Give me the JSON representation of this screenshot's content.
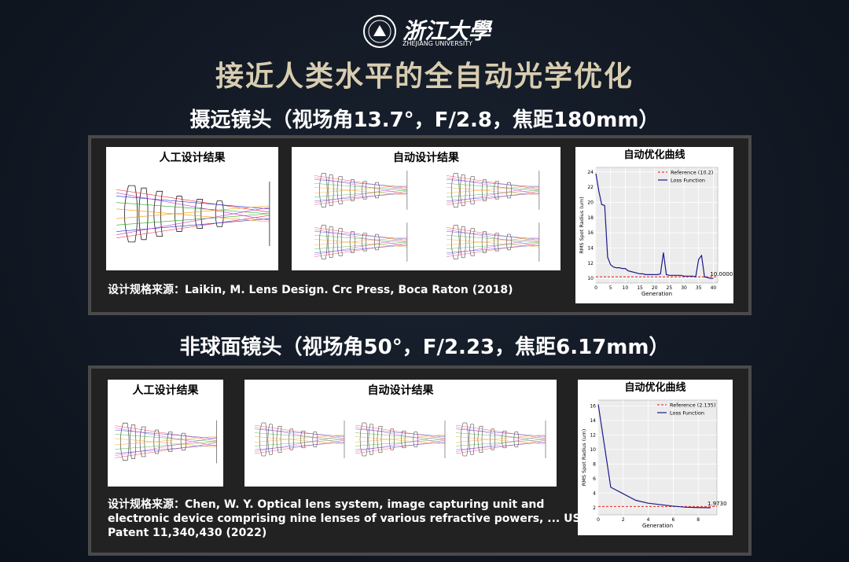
{
  "header": {
    "logo_text": "浙江大學",
    "logo_sub": "ZHEJIANG UNIVERSITY",
    "title": "接近人类水平的全自动光学优化"
  },
  "sections": [
    {
      "heading": "摄远镜头（视场角13.7°，F/2.8，焦距180mm）",
      "manual_label": "人工设计结果",
      "auto_label": "自动设计结果",
      "source": [
        "设计规格来源：Laikin, M. Lens Design. Crc Press, Boca Raton (2018)"
      ]
    },
    {
      "heading": "非球面镜头（视场角50°，F/2.23，焦距6.17mm）",
      "manual_label": "人工设计结果",
      "auto_label": "自动设计结果",
      "source": [
        "设计规格来源：Chen, W. Y. Optical lens system, image capturing unit and",
        "electronic device comprising nine lenses of various refractive powers, ... US",
        "Patent 11,340,430 (2022)"
      ]
    }
  ],
  "chart_data": [
    {
      "type": "line",
      "title": "自动优化曲线",
      "x_label": "Generation",
      "y_label": "RMS Spot Radius (um)",
      "xlim": [
        0,
        41.5
      ],
      "xticks": [
        0,
        5,
        10,
        15,
        20,
        25,
        30,
        35,
        40
      ],
      "ylim": [
        9.4,
        24.6
      ],
      "yticks": [
        10,
        12,
        14,
        16,
        18,
        20,
        22,
        24
      ],
      "grid": true,
      "legend": "upper right",
      "annotation": "10.0000",
      "series": [
        {
          "name": "Reference (10.2)",
          "color": "#e8403c",
          "style": "dashed",
          "x": [
            0,
            41.5
          ],
          "values": [
            10.2,
            10.2
          ]
        },
        {
          "name": "Loss Function",
          "color": "#1a1a8c",
          "style": "solid",
          "x": [
            0,
            1,
            2,
            3,
            4,
            5,
            6,
            7,
            8,
            9,
            10,
            11,
            12,
            13,
            14,
            15,
            16,
            17,
            18,
            19,
            20,
            21,
            22,
            23,
            24,
            25,
            26,
            27,
            28,
            29,
            30,
            31,
            32,
            33,
            34,
            35,
            36,
            37,
            38,
            39,
            40
          ],
          "values": [
            23.8,
            21.5,
            19.7,
            19.6,
            12.8,
            11.8,
            11.5,
            11.4,
            11.4,
            11.3,
            11.3,
            11.0,
            10.9,
            10.8,
            10.7,
            10.6,
            10.6,
            10.5,
            10.5,
            10.5,
            10.5,
            10.5,
            10.6,
            13.4,
            10.5,
            10.4,
            10.4,
            10.4,
            10.4,
            10.4,
            10.3,
            10.3,
            10.3,
            10.3,
            10.2,
            12.5,
            13.0,
            10.2,
            10.1,
            10.0,
            10.0
          ]
        }
      ]
    },
    {
      "type": "line",
      "title": "自动优化曲线",
      "x_label": "Generation",
      "y_label": "RMS Spot Radius (um)",
      "xlim": [
        0,
        9.5
      ],
      "xticks": [
        0,
        2,
        4,
        6,
        8
      ],
      "ylim": [
        1,
        16.8
      ],
      "yticks": [
        2,
        4,
        6,
        8,
        10,
        12,
        14,
        16
      ],
      "grid": true,
      "legend": "upper right",
      "annotation": "1.9730",
      "series": [
        {
          "name": "Reference (2.135)",
          "color": "#e8403c",
          "style": "dashed",
          "x": [
            0,
            9.5
          ],
          "values": [
            2.135,
            2.135
          ]
        },
        {
          "name": "Loss Function",
          "color": "#1a1a8c",
          "style": "solid",
          "x": [
            0,
            1,
            2,
            3,
            4,
            5,
            6,
            7,
            8,
            9
          ],
          "values": [
            16.2,
            4.8,
            3.9,
            3.0,
            2.6,
            2.4,
            2.2,
            2.05,
            2.0,
            1.973
          ]
        }
      ]
    }
  ]
}
